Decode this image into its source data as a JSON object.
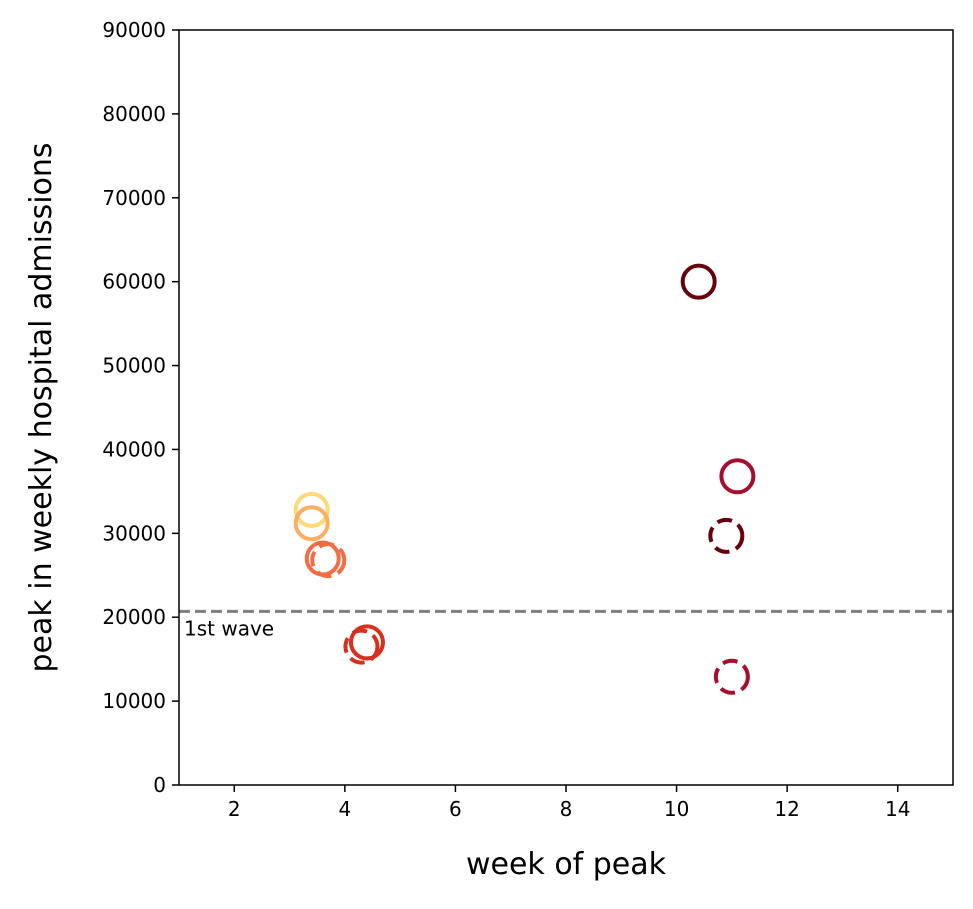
{
  "chart_data": {
    "type": "scatter",
    "xlabel": "week of peak",
    "ylabel": "peak in weekly hospital admissions",
    "xlim": [
      1,
      15
    ],
    "ylim": [
      0,
      90000
    ],
    "x_ticks": [
      2,
      4,
      6,
      8,
      10,
      12,
      14
    ],
    "y_ticks": [
      0,
      10000,
      20000,
      30000,
      40000,
      50000,
      60000,
      70000,
      80000,
      90000
    ],
    "grid": false,
    "reference_line": {
      "y": 20700,
      "style": "dashed",
      "color": "#808080",
      "label": "1st wave"
    },
    "points": [
      {
        "x": 3.4,
        "y": 32800,
        "style": "solid",
        "color": "#fed976"
      },
      {
        "x": 3.4,
        "y": 31200,
        "style": "solid",
        "color": "#fdae61"
      },
      {
        "x": 3.6,
        "y": 27000,
        "style": "solid",
        "color": "#f46d43"
      },
      {
        "x": 3.7,
        "y": 26800,
        "style": "dashed",
        "color": "#f46d43"
      },
      {
        "x": 4.4,
        "y": 17000,
        "style": "solid",
        "color": "#d7301f"
      },
      {
        "x": 4.3,
        "y": 16500,
        "style": "dashed",
        "color": "#d7301f"
      },
      {
        "x": 10.4,
        "y": 60000,
        "style": "solid",
        "color": "#67000d"
      },
      {
        "x": 11.1,
        "y": 36800,
        "style": "solid",
        "color": "#a50f2b"
      },
      {
        "x": 10.9,
        "y": 29700,
        "style": "dashed",
        "color": "#67000d"
      },
      {
        "x": 11.0,
        "y": 12900,
        "style": "dashed",
        "color": "#a50f2b"
      }
    ]
  }
}
